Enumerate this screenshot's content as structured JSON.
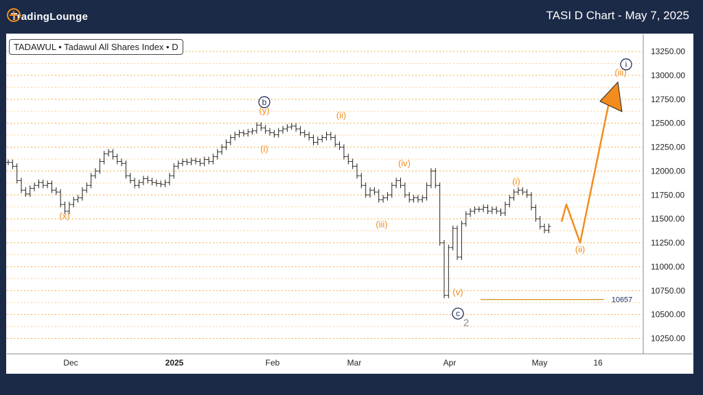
{
  "header": {
    "logo_text": "TradingLounge",
    "title": "TASI D Chart - May 7, 2025"
  },
  "colors": {
    "background": "#1b2a47",
    "accent_orange": "#f28c1c",
    "wave_navy": "#1e2d5a",
    "gray_label": "#8a8a95",
    "gridline": "#f2a93b"
  },
  "chart_data": {
    "type": "line",
    "symbol_label": "TADAWUL • Tadawul All Shares Index • D",
    "y_ticks": [
      "13250.00",
      "13000.00",
      "12750.00",
      "12500.00",
      "12250.00",
      "12000.00",
      "11750.00",
      "11500.00",
      "11250.00",
      "11000.00",
      "10750.00",
      "10500.00",
      "10250.00"
    ],
    "x_ticks": [
      "Dec",
      "2025",
      "Feb",
      "Mar",
      "Apr",
      "May",
      "16"
    ],
    "ylim": [
      10100,
      13350
    ],
    "price_line": {
      "value": 10657,
      "label": "10657"
    },
    "wave_labels_orange": [
      {
        "text": "(x)",
        "date": "Nov 27",
        "price": 11500
      },
      {
        "text": "(y)",
        "date": "Jan 29",
        "price": 12600
      },
      {
        "text": "(i)",
        "date": "Jan 29",
        "price": 12200
      },
      {
        "text": "(ii)",
        "date": "Feb 20",
        "price": 12550
      },
      {
        "text": "(iii)",
        "date": "Mar 8",
        "price": 11410
      },
      {
        "text": "(iv)",
        "date": "Mar 17",
        "price": 12050
      },
      {
        "text": "(v)",
        "date": "Apr 3",
        "price": 10700
      },
      {
        "text": "(i)",
        "date": "Apr 24",
        "price": 11860
      },
      {
        "text": "(ii)",
        "date": "May 12",
        "price": 11150
      },
      {
        "text": "(iii)",
        "date": "May 20",
        "price": 13000
      }
    ],
    "wave_labels_circled": [
      {
        "text": "b",
        "date": "Jan 29",
        "price": 12720
      },
      {
        "text": "c",
        "date": "Apr 3",
        "price": 10510
      },
      {
        "text": "i",
        "date": "May 21",
        "price": 13115
      }
    ],
    "wave_labels_gray": [
      {
        "text": "2",
        "date": "Apr 4",
        "price": 10380
      }
    ],
    "projection": [
      {
        "date": "May 8",
        "price": 11470
      },
      {
        "date": "May 9",
        "price": 11650
      },
      {
        "date": "May 12",
        "price": 11250
      },
      {
        "date": "May 19",
        "price": 12750
      }
    ],
    "ohlc": [
      {
        "x": 0,
        "y": 12090
      },
      {
        "x": 1,
        "y": 12050
      },
      {
        "x": 2,
        "y": 11900
      },
      {
        "x": 3,
        "y": 11800
      },
      {
        "x": 4,
        "y": 11760
      },
      {
        "x": 5,
        "y": 11820
      },
      {
        "x": 6,
        "y": 11850
      },
      {
        "x": 7,
        "y": 11880
      },
      {
        "x": 8,
        "y": 11850
      },
      {
        "x": 9,
        "y": 11870
      },
      {
        "x": 10,
        "y": 11800
      },
      {
        "x": 11,
        "y": 11780
      },
      {
        "x": 12,
        "y": 11650
      },
      {
        "x": 13,
        "y": 11580
      },
      {
        "x": 14,
        "y": 11650
      },
      {
        "x": 15,
        "y": 11700
      },
      {
        "x": 16,
        "y": 11720
      },
      {
        "x": 17,
        "y": 11800
      },
      {
        "x": 18,
        "y": 11850
      },
      {
        "x": 19,
        "y": 11950
      },
      {
        "x": 20,
        "y": 12000
      },
      {
        "x": 21,
        "y": 12100
      },
      {
        "x": 22,
        "y": 12180
      },
      {
        "x": 23,
        "y": 12200
      },
      {
        "x": 24,
        "y": 12150
      },
      {
        "x": 25,
        "y": 12100
      },
      {
        "x": 26,
        "y": 12080
      },
      {
        "x": 27,
        "y": 11950
      },
      {
        "x": 28,
        "y": 11900
      },
      {
        "x": 29,
        "y": 11850
      },
      {
        "x": 30,
        "y": 11880
      },
      {
        "x": 31,
        "y": 11920
      },
      {
        "x": 32,
        "y": 11900
      },
      {
        "x": 33,
        "y": 11880
      },
      {
        "x": 34,
        "y": 11870
      },
      {
        "x": 35,
        "y": 11860
      },
      {
        "x": 36,
        "y": 11880
      },
      {
        "x": 37,
        "y": 11950
      },
      {
        "x": 38,
        "y": 12050
      },
      {
        "x": 39,
        "y": 12080
      },
      {
        "x": 40,
        "y": 12100
      },
      {
        "x": 41,
        "y": 12090
      },
      {
        "x": 42,
        "y": 12110
      },
      {
        "x": 43,
        "y": 12100
      },
      {
        "x": 44,
        "y": 12080
      },
      {
        "x": 45,
        "y": 12120
      },
      {
        "x": 46,
        "y": 12100
      },
      {
        "x": 47,
        "y": 12150
      },
      {
        "x": 48,
        "y": 12200
      },
      {
        "x": 49,
        "y": 12250
      },
      {
        "x": 50,
        "y": 12300
      },
      {
        "x": 51,
        "y": 12350
      },
      {
        "x": 52,
        "y": 12380
      },
      {
        "x": 53,
        "y": 12400
      },
      {
        "x": 54,
        "y": 12390
      },
      {
        "x": 55,
        "y": 12410
      },
      {
        "x": 56,
        "y": 12420
      },
      {
        "x": 57,
        "y": 12480
      },
      {
        "x": 58,
        "y": 12450
      },
      {
        "x": 59,
        "y": 12420
      },
      {
        "x": 60,
        "y": 12400
      },
      {
        "x": 61,
        "y": 12380
      },
      {
        "x": 62,
        "y": 12420
      },
      {
        "x": 63,
        "y": 12440
      },
      {
        "x": 64,
        "y": 12460
      },
      {
        "x": 65,
        "y": 12470
      },
      {
        "x": 66,
        "y": 12440
      },
      {
        "x": 67,
        "y": 12400
      },
      {
        "x": 68,
        "y": 12380
      },
      {
        "x": 69,
        "y": 12350
      },
      {
        "x": 70,
        "y": 12300
      },
      {
        "x": 71,
        "y": 12330
      },
      {
        "x": 72,
        "y": 12350
      },
      {
        "x": 73,
        "y": 12380
      },
      {
        "x": 74,
        "y": 12350
      },
      {
        "x": 75,
        "y": 12280
      },
      {
        "x": 76,
        "y": 12250
      },
      {
        "x": 77,
        "y": 12150
      },
      {
        "x": 78,
        "y": 12100
      },
      {
        "x": 79,
        "y": 12050
      },
      {
        "x": 80,
        "y": 11950
      },
      {
        "x": 81,
        "y": 11850
      },
      {
        "x": 82,
        "y": 11750
      },
      {
        "x": 83,
        "y": 11800
      },
      {
        "x": 84,
        "y": 11780
      },
      {
        "x": 85,
        "y": 11700
      },
      {
        "x": 86,
        "y": 11720
      },
      {
        "x": 87,
        "y": 11750
      },
      {
        "x": 88,
        "y": 11850
      },
      {
        "x": 89,
        "y": 11900
      },
      {
        "x": 90,
        "y": 11850
      },
      {
        "x": 91,
        "y": 11750
      },
      {
        "x": 92,
        "y": 11700
      },
      {
        "x": 93,
        "y": 11720
      },
      {
        "x": 94,
        "y": 11700
      },
      {
        "x": 95,
        "y": 11720
      },
      {
        "x": 96,
        "y": 11850
      },
      {
        "x": 97,
        "y": 12000
      },
      {
        "x": 98,
        "y": 11850
      },
      {
        "x": 99,
        "y": 11250
      },
      {
        "x": 100,
        "y": 10700
      },
      {
        "x": 101,
        "y": 11200
      },
      {
        "x": 102,
        "y": 11400
      },
      {
        "x": 103,
        "y": 11100
      },
      {
        "x": 104,
        "y": 11450
      },
      {
        "x": 105,
        "y": 11550
      },
      {
        "x": 106,
        "y": 11580
      },
      {
        "x": 107,
        "y": 11600
      },
      {
        "x": 108,
        "y": 11600
      },
      {
        "x": 109,
        "y": 11620
      },
      {
        "x": 110,
        "y": 11580
      },
      {
        "x": 111,
        "y": 11600
      },
      {
        "x": 112,
        "y": 11580
      },
      {
        "x": 113,
        "y": 11560
      },
      {
        "x": 114,
        "y": 11650
      },
      {
        "x": 115,
        "y": 11720
      },
      {
        "x": 116,
        "y": 11780
      },
      {
        "x": 117,
        "y": 11800
      },
      {
        "x": 118,
        "y": 11780
      },
      {
        "x": 119,
        "y": 11750
      },
      {
        "x": 120,
        "y": 11620
      },
      {
        "x": 121,
        "y": 11500
      },
      {
        "x": 122,
        "y": 11420
      },
      {
        "x": 123,
        "y": 11380
      },
      {
        "x": 124,
        "y": 11420
      }
    ]
  }
}
